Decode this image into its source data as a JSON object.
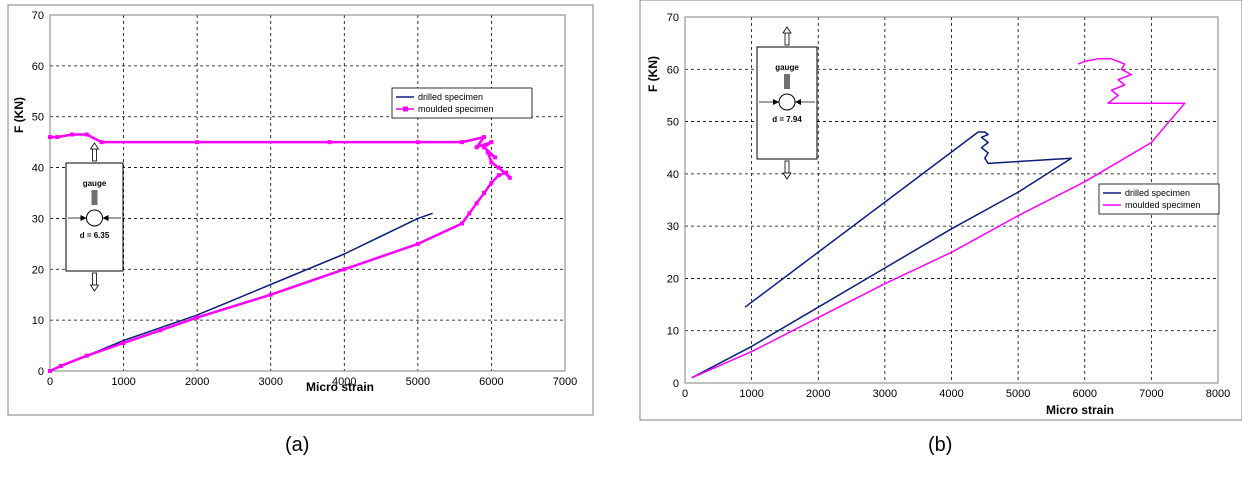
{
  "colors": {
    "drilled": "#0b1f7a",
    "moulded": "#ff00ff",
    "background": "#ffffff",
    "grid": "#000000"
  },
  "chart_data": [
    {
      "panel_caption": "(a)",
      "type": "line",
      "xlabel": "Micro strain",
      "ylabel": "F (KN)",
      "xlim": [
        0,
        7000
      ],
      "ylim": [
        0,
        70
      ],
      "x_ticks": [
        0,
        1000,
        2000,
        3000,
        4000,
        5000,
        6000,
        7000
      ],
      "y_ticks": [
        0,
        10,
        20,
        30,
        40,
        50,
        60,
        70
      ],
      "grid": true,
      "legend_position": "top-right",
      "inset": {
        "label": "gauge",
        "dimension": "d = 6.35"
      },
      "series": [
        {
          "name": "drilled specimen",
          "color": "drilled",
          "marker": "line",
          "x": [
            0,
            500,
            1000,
            2000,
            3000,
            4000,
            5000,
            5200
          ],
          "y": [
            0,
            3,
            6,
            11,
            17,
            23,
            30,
            31
          ]
        },
        {
          "name": "moulded specimen",
          "color": "moulded",
          "marker": "square",
          "x": [
            0,
            150,
            500,
            1000,
            1500,
            2000,
            3000,
            4000,
            5000,
            5600,
            5700,
            5800,
            5900,
            6000,
            6100,
            6200,
            6250,
            6100,
            6000,
            5950,
            6050,
            5900,
            6000,
            5800,
            5900,
            5600,
            5000,
            3800,
            2000,
            700,
            500,
            300,
            100,
            0
          ],
          "y": [
            0,
            1,
            3,
            5.5,
            8,
            10.5,
            15,
            20,
            25,
            29,
            31,
            33,
            35,
            37,
            38.5,
            39,
            38,
            40,
            41,
            43,
            42,
            44,
            45,
            44,
            46,
            45,
            45,
            45,
            45,
            45,
            46.5,
            46.5,
            46,
            46
          ]
        }
      ]
    },
    {
      "panel_caption": "(b)",
      "type": "line",
      "xlabel": "Micro strain",
      "ylabel": "F (KN)",
      "xlim": [
        0,
        8000
      ],
      "ylim": [
        0,
        70
      ],
      "x_ticks": [
        0,
        1000,
        2000,
        3000,
        4000,
        5000,
        6000,
        7000,
        8000
      ],
      "y_ticks": [
        0,
        10,
        20,
        30,
        40,
        50,
        60,
        70
      ],
      "grid": true,
      "legend_position": "bottom-right",
      "inset": {
        "label": "gauge",
        "dimension": "d = 7.94"
      },
      "series": [
        {
          "name": "drilled specimen",
          "color": "drilled",
          "marker": "line",
          "x": [
            100,
            1000,
            2000,
            3000,
            4000,
            5000,
            5800,
            4550,
            4500,
            4550,
            4450,
            4550,
            4450,
            4550,
            4500,
            4400,
            900
          ],
          "y": [
            1,
            7,
            14.5,
            22,
            29.5,
            36.5,
            43,
            42,
            43,
            44,
            45,
            46,
            47,
            47.5,
            48,
            48,
            14.5
          ]
        },
        {
          "name": "moulded specimen",
          "color": "moulded",
          "marker": "line",
          "x": [
            100,
            1000,
            2000,
            3000,
            4000,
            5000,
            6000,
            7000,
            7500,
            6350,
            6500,
            6400,
            6600,
            6500,
            6700,
            6550,
            6600,
            6400,
            6200,
            6000,
            5900
          ],
          "y": [
            1,
            6,
            12.5,
            19,
            25,
            32,
            38.5,
            46,
            53.5,
            53.5,
            55,
            56,
            57,
            58,
            59,
            60,
            61,
            62,
            62,
            61.5,
            61
          ]
        }
      ]
    }
  ],
  "captions": {
    "a": "(a)",
    "b": "(b)"
  }
}
